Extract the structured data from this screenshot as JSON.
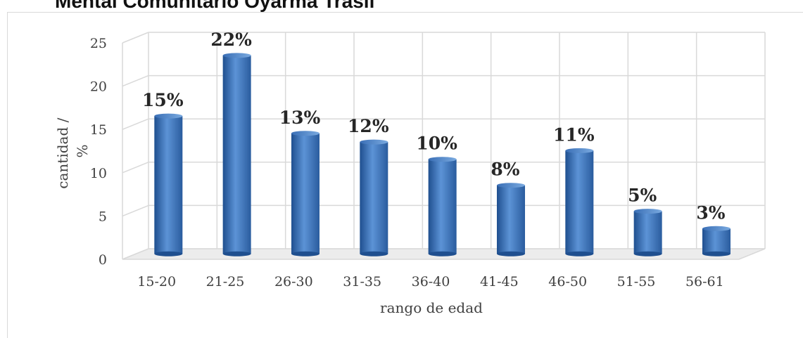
{
  "page": {
    "title": "Mental Comunitario Oyarma Trasli"
  },
  "chart_data": {
    "type": "bar",
    "categories": [
      "15-20",
      "21-25",
      "26-30",
      "31-35",
      "36-40",
      "41-45",
      "46-50",
      "51-55",
      "56-61"
    ],
    "series": [
      {
        "values": [
          16,
          23,
          14,
          13,
          11,
          8,
          12,
          5,
          3
        ],
        "data_labels": [
          "15%",
          "22%",
          "13%",
          "12%",
          "10%",
          "8%",
          "11%",
          "5%",
          "3%"
        ]
      }
    ],
    "xlabel": "rango de edad",
    "ylabel_lines": [
      "cantidad /",
      "%"
    ],
    "ylim": [
      0,
      25
    ],
    "yticks": [
      0,
      5,
      10,
      15,
      20,
      25
    ],
    "grid": true,
    "legend": "none",
    "bar_color": "#4a7ec4",
    "bar_color_dark": "#1f4f8f",
    "grid_color": "#d9d9d9"
  }
}
